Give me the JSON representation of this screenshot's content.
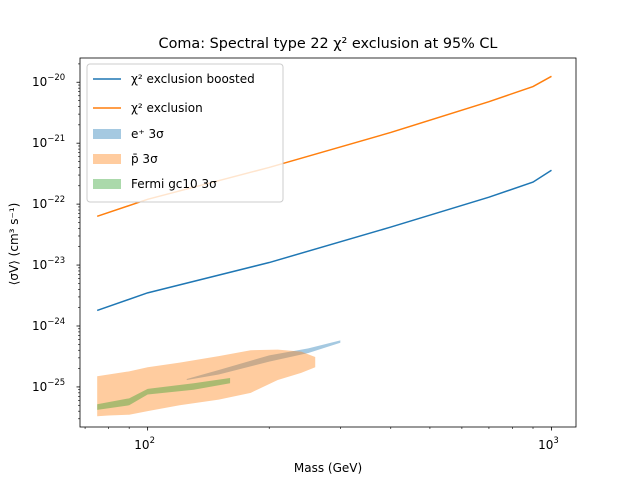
{
  "chart_data": {
    "type": "line",
    "title": "Coma: Spectral type 22 χ² exclusion at 95% CL",
    "xlabel": "Mass (GeV)",
    "ylabel": "⟨σV⟩ (cm³ s⁻¹)",
    "xscale": "log",
    "yscale": "log",
    "xlim": [
      68,
      1150
    ],
    "ylim": [
      2.2e-26,
      2.5e-20
    ],
    "xticks": [
      {
        "value": 100,
        "base": "10",
        "exp": "2"
      },
      {
        "value": 1000,
        "base": "10",
        "exp": "3"
      }
    ],
    "yticks": [
      {
        "value": 1e-25,
        "base": "10",
        "exp": "−25"
      },
      {
        "value": 1e-24,
        "base": "10",
        "exp": "−24"
      },
      {
        "value": 1e-23,
        "base": "10",
        "exp": "−23"
      },
      {
        "value": 1e-22,
        "base": "10",
        "exp": "−22"
      },
      {
        "value": 1e-21,
        "base": "10",
        "exp": "−21"
      },
      {
        "value": 1e-20,
        "base": "10",
        "exp": "−20"
      }
    ],
    "grid": false,
    "legend_position": "upper-left",
    "series": [
      {
        "name": "χ² exclusion boosted",
        "kind": "line",
        "color": "#1f77b4",
        "x": [
          75,
          100,
          200,
          400,
          700,
          900,
          1000
        ],
        "y": [
          1.8e-24,
          3.5e-24,
          1.1e-23,
          4.2e-23,
          1.3e-22,
          2.3e-22,
          3.6e-22
        ]
      },
      {
        "name": "χ² exclusion",
        "kind": "line",
        "color": "#ff7f0e",
        "x": [
          75,
          100,
          200,
          400,
          700,
          900,
          1000
        ],
        "y": [
          6.3e-23,
          1.2e-22,
          4e-22,
          1.5e-21,
          4.8e-21,
          8.5e-21,
          1.25e-20
        ]
      },
      {
        "name": "e⁺ 3σ",
        "kind": "band",
        "color": "#1f77b4",
        "opacity": 0.4,
        "x": [
          125,
          150,
          200,
          250,
          300
        ],
        "y_low": [
          1.3e-25,
          1.6e-25,
          2.6e-25,
          3.6e-25,
          5.3e-25
        ],
        "y_high": [
          1.35e-25,
          1.9e-25,
          3.3e-25,
          4.3e-25,
          5.8e-25
        ]
      },
      {
        "name": "p̄ 3σ",
        "kind": "band",
        "color": "#ff7f0e",
        "opacity": 0.4,
        "x": [
          75,
          80,
          90,
          100,
          120,
          150,
          180,
          210,
          240,
          260
        ],
        "y_low": [
          3.3e-26,
          3.4e-26,
          3.5e-26,
          4e-26,
          5e-26,
          6.2e-26,
          8e-26,
          1.3e-25,
          1.7e-25,
          2.1e-25
        ],
        "y_high": [
          1.5e-25,
          1.6e-25,
          1.8e-25,
          2.1e-25,
          2.5e-25,
          3.2e-25,
          4e-25,
          4.1e-25,
          3.8e-25,
          3.1e-25
        ]
      },
      {
        "name": "Fermi gc10 3σ",
        "kind": "band",
        "color": "#2ca02c",
        "opacity": 0.4,
        "x": [
          75,
          90,
          100,
          130,
          160
        ],
        "y_low": [
          4.2e-26,
          5e-26,
          7.5e-26,
          9e-26,
          1.15e-25
        ],
        "y_high": [
          5.2e-26,
          6.5e-26,
          9.3e-26,
          1.15e-25,
          1.4e-25
        ]
      }
    ]
  }
}
